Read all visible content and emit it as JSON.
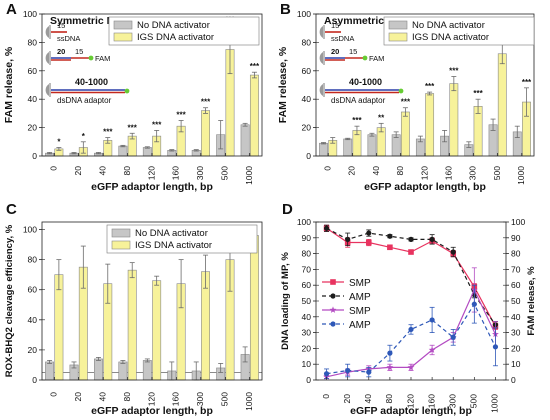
{
  "colors": {
    "gray_bar": "#c6c6c6",
    "yellow_bar": "#f7f29a",
    "bar_stroke": "#888888",
    "error_bar": "#6b6b6b",
    "smp_fam": "#e8335f",
    "amp_fam": "#1c1c1c",
    "smp_load": "#b34bc2",
    "amp_load": "#2e58b8",
    "dsdna_line": "#2a3fa8",
    "fam_dot": "#66cc33",
    "label_red": "#c3281e"
  },
  "chart_data": [
    {
      "panel": "A",
      "type": "bar",
      "title": "Symmetric MP",
      "xlabel": "eGFP adaptor length, bp",
      "ylabel": "FAM release, %",
      "ylim": [
        0,
        100
      ],
      "yticks": [
        0,
        20,
        40,
        60,
        80,
        100
      ],
      "categories": [
        "0",
        "20",
        "40",
        "80",
        "120",
        "160",
        "300",
        "500",
        "1000"
      ],
      "legend_position": "top-right",
      "series": [
        {
          "name": "No DNA activator",
          "color_key": "gray_bar",
          "values": [
            2,
            2,
            2,
            7,
            6,
            4,
            4,
            15,
            22
          ],
          "errors": [
            0.5,
            0.5,
            0.5,
            0.5,
            0.5,
            0.5,
            0.5,
            10,
            1
          ]
        },
        {
          "name": "IGS DNA activator",
          "color_key": "yellow_bar",
          "values": [
            5,
            6,
            11,
            14,
            14,
            21,
            32,
            75,
            57
          ],
          "errors": [
            1,
            4,
            2,
            2,
            4,
            4,
            2,
            17,
            2
          ]
        }
      ],
      "significance": [
        "*",
        "*",
        "***",
        "***",
        "***",
        "***",
        "***",
        "***",
        "***"
      ],
      "diagram": {
        "labels": [
          "15",
          "ssDNA",
          "20",
          "15",
          "FAM",
          "40-1000",
          "dsDNA adaptor"
        ]
      }
    },
    {
      "panel": "B",
      "type": "bar",
      "title": "Asymmetric MP",
      "xlabel": "eGFP adaptor length, bp",
      "ylabel": "FAM release, %",
      "ylim": [
        0,
        100
      ],
      "yticks": [
        0,
        20,
        40,
        60,
        80,
        100
      ],
      "categories": [
        "0",
        "20",
        "40",
        "80",
        "120",
        "160",
        "300",
        "500",
        "1000"
      ],
      "legend_position": "top-right",
      "series": [
        {
          "name": "No DNA activator",
          "color_key": "gray_bar",
          "values": [
            9,
            12,
            15,
            15,
            12,
            14,
            8,
            22,
            17
          ],
          "errors": [
            0.5,
            0.5,
            1,
            2,
            2,
            4,
            2,
            4,
            4
          ]
        },
        {
          "name": "IGS DNA activator",
          "color_key": "yellow_bar",
          "values": [
            11,
            18,
            20,
            31,
            44,
            51,
            35,
            72,
            38
          ],
          "errors": [
            2,
            3,
            3,
            3,
            1,
            5,
            5,
            7,
            10
          ]
        }
      ],
      "significance": [
        "",
        "***",
        "**",
        "***",
        "***",
        "***",
        "***",
        "***",
        "***"
      ],
      "diagram": {
        "labels": [
          "15",
          "ssDNA",
          "20",
          "15",
          "FAM",
          "40-1000",
          "dsDNA adaptor"
        ]
      }
    },
    {
      "panel": "C",
      "type": "bar",
      "title": "",
      "xlabel": "eGFP adaptor length, bp",
      "ylabel": "ROX-BHQ2 cleavage efficiency, %",
      "ylim": [
        0,
        105
      ],
      "yticks": [
        0,
        20,
        40,
        60,
        80,
        100
      ],
      "categories": [
        "0",
        "20",
        "40",
        "80",
        "120",
        "160",
        "300",
        "500",
        "1000"
      ],
      "legend_position": "top-right",
      "reference_line": 5,
      "series": [
        {
          "name": "No DNA activator",
          "color_key": "gray_bar",
          "values": [
            12,
            10,
            14,
            12,
            13,
            6,
            6,
            8,
            17
          ],
          "errors": [
            1,
            2,
            1,
            1,
            1,
            6,
            6,
            3,
            5
          ]
        },
        {
          "name": "IGS DNA activator",
          "color_key": "yellow_bar",
          "values": [
            70,
            75,
            64,
            73,
            66,
            64,
            72,
            80,
            96
          ],
          "errors": [
            10,
            14,
            13,
            5,
            3,
            16,
            11,
            21,
            4
          ]
        }
      ]
    },
    {
      "panel": "D",
      "type": "line",
      "title": "",
      "xlabel": "eGFP adaptor length, bp",
      "ylabel": "DNA loading of MP, %",
      "y2label": "FAM release, %",
      "ylim": [
        0,
        100
      ],
      "y2lim": [
        0,
        100
      ],
      "yticks": [
        0,
        10,
        20,
        30,
        40,
        50,
        60,
        70,
        80,
        90,
        100
      ],
      "categories": [
        "0",
        "20",
        "40",
        "80",
        "120",
        "160",
        "300",
        "500",
        "1000"
      ],
      "legend_position": "middle-left",
      "series": [
        {
          "name": "SMP",
          "axis": "left",
          "style": "solid",
          "marker": "square",
          "color_key": "smp_fam",
          "values": [
            96,
            87,
            87,
            84,
            81,
            88,
            80,
            59,
            34
          ],
          "errors": [
            2,
            3,
            2,
            1,
            1,
            2,
            2,
            2,
            2
          ]
        },
        {
          "name": "AMP",
          "axis": "left",
          "style": "dashed",
          "marker": "circle",
          "color_key": "amp_fam",
          "values": [
            96,
            89,
            93,
            91,
            89,
            89,
            81,
            54,
            35
          ],
          "errors": [
            2,
            4,
            2,
            1,
            1,
            3,
            3,
            2,
            2
          ]
        },
        {
          "name": "SMP",
          "axis": "right",
          "style": "solid",
          "marker": "star",
          "color_key": "smp_load",
          "values": [
            2,
            5,
            7,
            8,
            8,
            19,
            27,
            57,
            29
          ],
          "errors": [
            1,
            2,
            2,
            2,
            2,
            3,
            3,
            14,
            8
          ]
        },
        {
          "name": "AMP",
          "axis": "right",
          "style": "dashed",
          "marker": "circle",
          "color_key": "amp_load",
          "values": [
            4,
            6,
            5,
            17,
            32,
            38,
            27,
            48,
            21
          ],
          "errors": [
            3,
            4,
            3,
            5,
            3,
            8,
            5,
            12,
            12
          ]
        }
      ]
    }
  ]
}
